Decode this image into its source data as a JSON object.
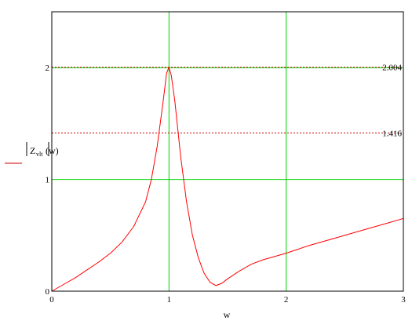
{
  "chart_data": {
    "type": "line",
    "xlabel": "w",
    "ylabel": {
      "main": "Z",
      "subscript": "vlt",
      "argument": "(w)"
    },
    "xlim": [
      0,
      3
    ],
    "ylim": [
      0,
      2.5
    ],
    "x_ticks": [
      "0",
      "1",
      "2",
      "3"
    ],
    "y_ticks": [
      "0",
      "1",
      "2"
    ],
    "grid": true,
    "grid_x": [
      1,
      2
    ],
    "grid_y": [
      1,
      2
    ],
    "markers": [
      {
        "value": 2.004,
        "label": "2.004"
      },
      {
        "value": 1.416,
        "label": "1.416"
      }
    ],
    "series": [
      {
        "x": [
          0,
          0.1,
          0.2,
          0.3,
          0.4,
          0.5,
          0.6,
          0.7,
          0.8,
          0.85,
          0.9,
          0.95,
          0.98,
          1.0,
          1.02,
          1.05,
          1.1,
          1.15,
          1.2,
          1.25,
          1.3,
          1.35,
          1.4,
          1.45,
          1.5,
          1.6,
          1.7,
          1.8,
          2.0,
          2.2,
          2.4,
          2.6,
          2.8,
          3.0
        ],
        "y": [
          0,
          0.06,
          0.12,
          0.19,
          0.26,
          0.34,
          0.44,
          0.58,
          0.8,
          1.0,
          1.3,
          1.7,
          1.95,
          2.004,
          1.93,
          1.7,
          1.2,
          0.8,
          0.5,
          0.3,
          0.16,
          0.08,
          0.05,
          0.07,
          0.11,
          0.18,
          0.24,
          0.28,
          0.34,
          0.41,
          0.47,
          0.53,
          0.59,
          0.65
        ]
      }
    ],
    "colors": {
      "grid": "#00d200",
      "curve": "#ff0000",
      "marker": "#cc0000",
      "axis": "#000000"
    }
  }
}
